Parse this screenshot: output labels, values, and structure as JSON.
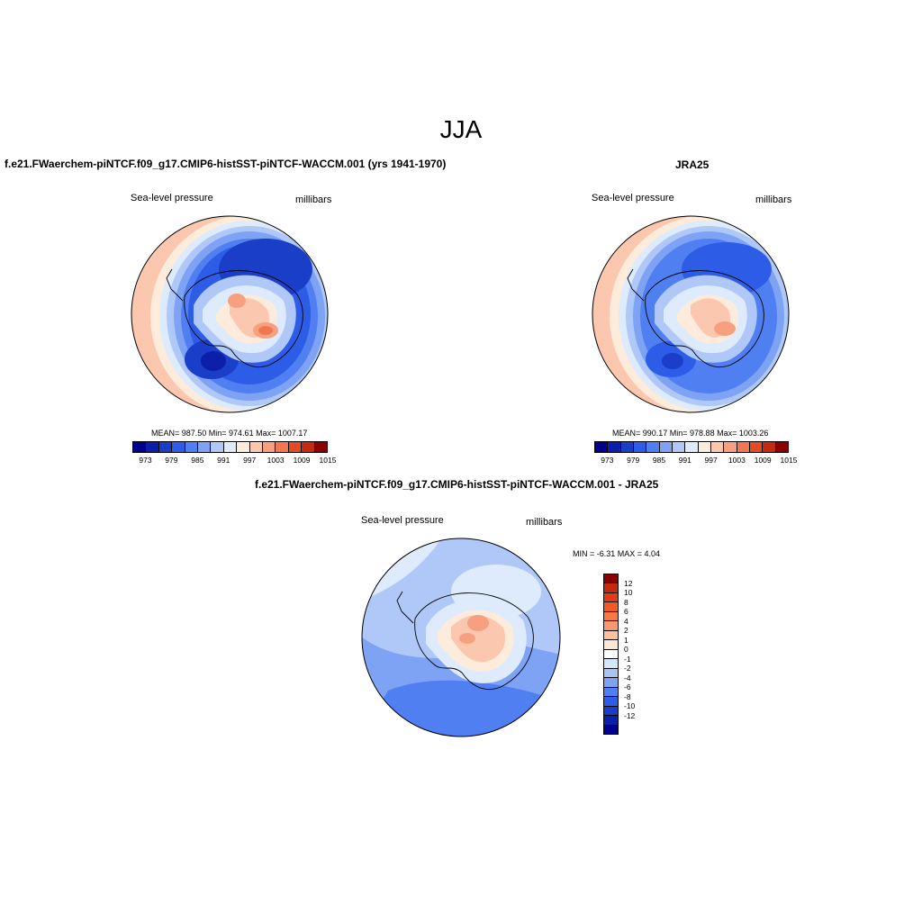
{
  "title": "JJA",
  "panels": {
    "model": {
      "title": "f.e21.FWaerchem-piNTCF.f09_g17.CMIP6-histSST-piNTCF-WACCM.001 (yrs 1941-1970)",
      "left_label": "Sea-level pressure",
      "right_label": "millibars",
      "stats": "MEAN= 987.50  Min= 974.61  Max= 1007.17"
    },
    "obs": {
      "title": "JRA25",
      "left_label": "Sea-level pressure",
      "right_label": "millibars",
      "stats": "MEAN= 990.17  Min= 978.88  Max= 1003.26"
    },
    "diff": {
      "title": "f.e21.FWaerchem-piNTCF.f09_g17.CMIP6-histSST-piNTCF-WACCM.001 - JRA25",
      "left_label": "Sea-level pressure",
      "right_label": "millibars",
      "stats": "MIN =  -6.31 MAX =   4.04"
    }
  },
  "colorbar_abs": {
    "colors": [
      "#00008b",
      "#0b1fab",
      "#1a3ec8",
      "#2d5ce6",
      "#4f7ff0",
      "#7ea3f5",
      "#b0c8f8",
      "#deebfd",
      "#fdebdc",
      "#fbc7ae",
      "#f7a080",
      "#f27750",
      "#e24b25",
      "#c42a10",
      "#8b0000"
    ],
    "tick_labels": [
      "973",
      "979",
      "985",
      "991",
      "997",
      "1003",
      "1009",
      "1015"
    ]
  },
  "colorbar_diff": {
    "colors": [
      "#8b0000",
      "#c42a10",
      "#e23c10",
      "#f05a25",
      "#f57a45",
      "#f89a70",
      "#fbc0a0",
      "#fde8d5",
      "#ffffff",
      "#d6e6fb",
      "#a9c5f6",
      "#7ea3f5",
      "#4f7ff0",
      "#2d5ce6",
      "#1a3ec8",
      "#0b1fab",
      "#00008b"
    ],
    "tick_labels": [
      "12",
      "10",
      "8",
      "6",
      "4",
      "2",
      "1",
      "0",
      "-1",
      "-2",
      "-4",
      "-6",
      "-8",
      "-10",
      "-12"
    ]
  }
}
